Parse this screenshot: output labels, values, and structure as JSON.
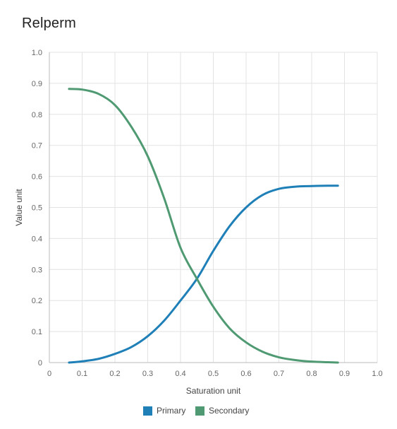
{
  "page": {
    "title": "Relperm"
  },
  "colors": {
    "primary": "#1f7fb7",
    "secondary": "#4f9a72",
    "grid": "#e3e3e3",
    "axis": "#bbbbbb"
  },
  "chart_data": {
    "type": "line",
    "title": "Relperm",
    "xlabel": "Saturation unit",
    "ylabel": "Value unit",
    "xlim": [
      0,
      1.0
    ],
    "ylim": [
      0,
      1.0
    ],
    "x_ticks": [
      "0",
      "0.1",
      "0.2",
      "0.3",
      "0.4",
      "0.5",
      "0.6",
      "0.7",
      "0.8",
      "0.9",
      "1.0"
    ],
    "y_ticks": [
      "0",
      "0.1",
      "0.2",
      "0.3",
      "0.4",
      "0.5",
      "0.6",
      "0.7",
      "0.8",
      "0.9",
      "1.0"
    ],
    "grid": true,
    "legend_position": "bottom",
    "series": [
      {
        "name": "Primary",
        "color": "#1f7fb7",
        "x": [
          0.06,
          0.1,
          0.15,
          0.2,
          0.25,
          0.3,
          0.35,
          0.4,
          0.45,
          0.5,
          0.55,
          0.6,
          0.65,
          0.7,
          0.75,
          0.8,
          0.85,
          0.88
        ],
        "y": [
          0.0,
          0.004,
          0.012,
          0.028,
          0.05,
          0.085,
          0.135,
          0.2,
          0.27,
          0.36,
          0.44,
          0.5,
          0.54,
          0.56,
          0.567,
          0.569,
          0.57,
          0.57
        ]
      },
      {
        "name": "Secondary",
        "color": "#4f9a72",
        "x": [
          0.06,
          0.1,
          0.15,
          0.2,
          0.25,
          0.3,
          0.35,
          0.4,
          0.45,
          0.5,
          0.55,
          0.6,
          0.65,
          0.7,
          0.75,
          0.8,
          0.85,
          0.88
        ],
        "y": [
          0.882,
          0.88,
          0.866,
          0.83,
          0.76,
          0.665,
          0.53,
          0.37,
          0.27,
          0.18,
          0.11,
          0.065,
          0.035,
          0.017,
          0.008,
          0.003,
          0.001,
          0.0
        ]
      }
    ]
  }
}
